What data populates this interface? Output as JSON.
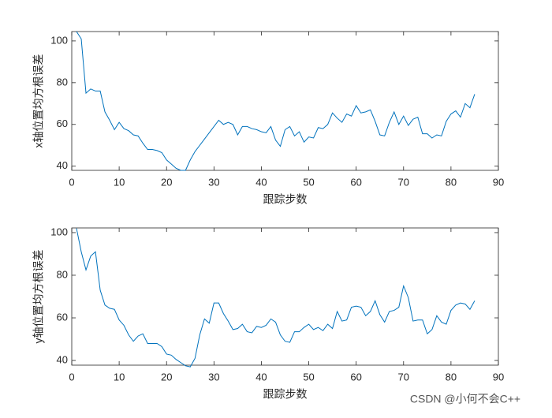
{
  "chart_data": [
    {
      "type": "line",
      "xlabel": "跟踪步数",
      "ylabel": "x轴位置均方根误差",
      "color": "#0072bd",
      "xlim": [
        0,
        90
      ],
      "xticks": [
        0,
        10,
        20,
        30,
        40,
        50,
        60,
        70,
        80,
        90
      ],
      "ylim": [
        38,
        104.5
      ],
      "yticks": [
        40,
        60,
        80,
        100
      ],
      "x": [
        1,
        2,
        3,
        4,
        5,
        6,
        7,
        8,
        9,
        10,
        11,
        12,
        13,
        14,
        15,
        16,
        17,
        18,
        19,
        20,
        21,
        22,
        23,
        24,
        25,
        26,
        27,
        28,
        29,
        30,
        31,
        32,
        33,
        34,
        35,
        36,
        37,
        38,
        39,
        40,
        41,
        42,
        43,
        44,
        45,
        46,
        47,
        48,
        49,
        50,
        51,
        52,
        53,
        54,
        55,
        56,
        57,
        58,
        59,
        60,
        61,
        62,
        63,
        64,
        65,
        66,
        67,
        68,
        69,
        70,
        71,
        72,
        73,
        74,
        75,
        76,
        77,
        78,
        79,
        80,
        81,
        82,
        83,
        84,
        85
      ],
      "values": [
        104.5,
        101,
        75,
        77,
        76,
        76,
        66,
        62,
        57.5,
        61,
        58,
        57,
        55,
        54.5,
        51,
        48,
        48,
        47.5,
        46.5,
        43,
        41,
        39,
        38,
        38,
        43,
        47,
        50,
        53,
        56,
        59,
        62,
        60,
        61,
        60,
        55,
        59,
        59,
        58,
        57.5,
        56.5,
        56,
        59,
        52.5,
        49.5,
        57.5,
        59,
        54.5,
        56.5,
        51.5,
        54,
        53.5,
        58.5,
        58,
        60,
        65.5,
        63,
        61,
        65,
        64,
        69,
        65.5,
        66,
        67,
        61.5,
        55,
        54.5,
        61,
        66,
        60,
        64,
        59.5,
        62.5,
        63.5,
        55.5,
        55.5,
        53.5,
        55,
        54.5,
        61.5,
        65,
        66.5,
        63.5,
        70,
        68,
        74.5
      ]
    },
    {
      "type": "line",
      "xlabel": "跟踪步数",
      "ylabel": "y轴位置均方根误差",
      "color": "#0072bd",
      "xlim": [
        0,
        90
      ],
      "xticks": [
        0,
        10,
        20,
        30,
        40,
        50,
        60,
        70,
        80,
        90
      ],
      "ylim": [
        37.8,
        102.2
      ],
      "yticks": [
        40,
        60,
        80,
        100
      ],
      "x": [
        1,
        2,
        3,
        4,
        5,
        6,
        7,
        8,
        9,
        10,
        11,
        12,
        13,
        14,
        15,
        16,
        17,
        18,
        19,
        20,
        21,
        22,
        23,
        24,
        25,
        26,
        27,
        28,
        29,
        30,
        31,
        32,
        33,
        34,
        35,
        36,
        37,
        38,
        39,
        40,
        41,
        42,
        43,
        44,
        45,
        46,
        47,
        48,
        49,
        50,
        51,
        52,
        53,
        54,
        55,
        56,
        57,
        58,
        59,
        60,
        61,
        62,
        63,
        64,
        65,
        66,
        67,
        68,
        69,
        70,
        71,
        72,
        73,
        74,
        75,
        76,
        77,
        78,
        79,
        80,
        81,
        82,
        83,
        84,
        85
      ],
      "values": [
        102,
        91,
        82.5,
        89,
        91,
        73,
        66,
        64.5,
        64,
        59,
        56.5,
        52,
        49,
        51.5,
        52.5,
        48,
        48,
        48,
        46.5,
        43,
        42.5,
        40.5,
        39,
        37.5,
        37,
        41,
        52,
        59.5,
        57.5,
        67,
        67,
        62,
        58.5,
        54.5,
        55,
        57,
        53.5,
        53,
        56,
        55.5,
        56.5,
        59.5,
        58,
        52,
        49,
        48.5,
        53.5,
        53.5,
        55.5,
        57,
        54.5,
        55.5,
        54,
        57,
        55,
        63,
        58.5,
        59,
        65,
        65.5,
        65,
        61,
        63,
        68,
        61.5,
        58,
        63,
        63.5,
        65,
        75,
        69.5,
        58.5,
        59,
        59,
        52.5,
        54.5,
        61,
        58,
        57,
        63.5,
        66,
        67,
        66.5,
        64,
        68
      ]
    }
  ],
  "watermark": "CSDN @小何不会C++"
}
